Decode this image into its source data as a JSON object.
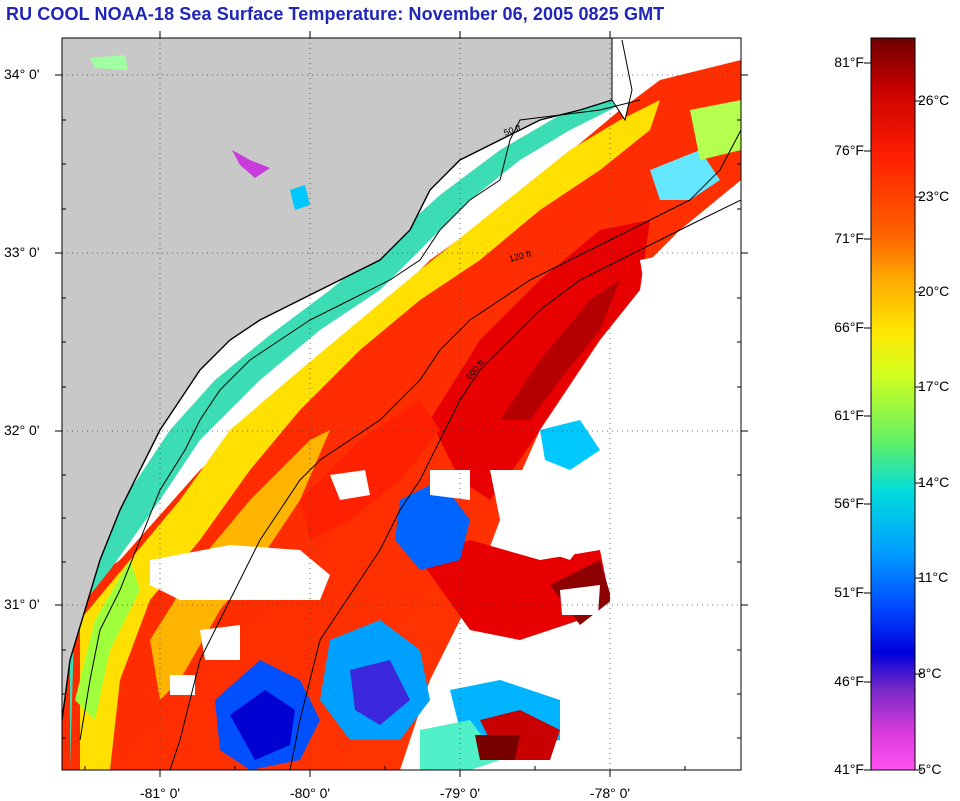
{
  "title": "RU COOL  NOAA-18  Sea Surface Temperature:  November 06, 2005 0825 GMT",
  "map": {
    "lat_labels": [
      {
        "text": "34° 0'",
        "lat": 34
      },
      {
        "text": "33° 0'",
        "lat": 33
      },
      {
        "text": "32° 0'",
        "lat": 32
      },
      {
        "text": "31° 0'",
        "lat": 31
      }
    ],
    "lon_labels": [
      {
        "text": "-81° 0'",
        "lon": -81
      },
      {
        "text": "-80° 0'",
        "lon": -80
      },
      {
        "text": "-79° 0'",
        "lon": -79
      },
      {
        "text": "-78° 0'",
        "lon": -78
      }
    ],
    "isobath_labels": [
      "50 ft",
      "120 ft",
      "600 ft"
    ],
    "colors": {
      "land": "#c8c8c8",
      "cloud": "#ffffff",
      "coast": "#000000"
    }
  },
  "colorbar": {
    "fahrenheit_labels": [
      "81°F",
      "76°F",
      "71°F",
      "66°F",
      "61°F",
      "56°F",
      "51°F",
      "46°F",
      "41°F"
    ],
    "celsius_labels": [
      "26°C",
      "23°C",
      "20°C",
      "17°C",
      "14°C",
      "11°C",
      "8°C",
      "5°C"
    ],
    "colors_top_to_bottom": [
      "#6e0000",
      "#c80000",
      "#ff1e00",
      "#ff6400",
      "#ffaa00",
      "#ffe600",
      "#d2ff1e",
      "#64f064",
      "#00dcdc",
      "#00a0ff",
      "#0046ff",
      "#0000dc",
      "#7828c8",
      "#dc3cdc",
      "#ff50f0"
    ]
  }
}
